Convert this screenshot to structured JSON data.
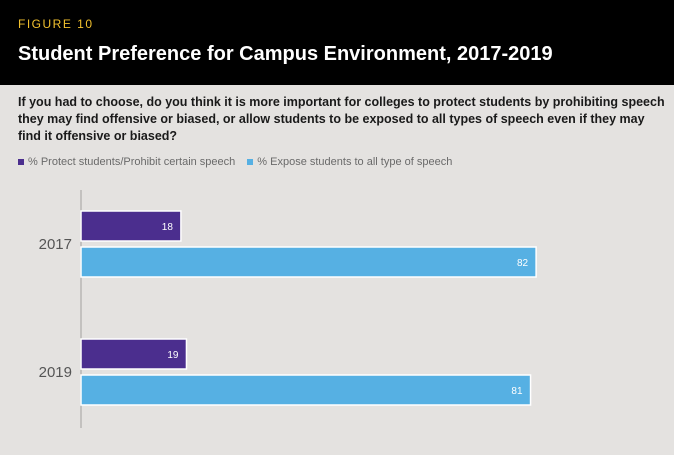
{
  "figure_label": "FIGURE 10",
  "title": "Student Preference for Campus Environment, 2017-2019",
  "question": "If you had to choose, do you think it is more important for colleges to protect students by prohibiting speech they may find offensive or biased, or allow students to be exposed to all types of speech even if they may find it offensive or biased?",
  "colors": {
    "header_bg": "#000000",
    "figure_label": "#f2c12e",
    "protect": "#4b2e8e",
    "expose": "#56b0e3"
  },
  "chart_data": {
    "type": "bar",
    "orientation": "horizontal",
    "categories": [
      "2017",
      "2019"
    ],
    "series": [
      {
        "name": "% Protect students/Prohibit certain speech",
        "values": [
          18,
          19
        ],
        "color": "#4b2e8e"
      },
      {
        "name": "% Expose students to all type of speech",
        "values": [
          82,
          81
        ],
        "color": "#56b0e3"
      }
    ],
    "title": "Student Preference for Campus Environment, 2017-2019",
    "xlim": [
      0,
      100
    ],
    "legend_position": "top-left",
    "grid": false
  }
}
